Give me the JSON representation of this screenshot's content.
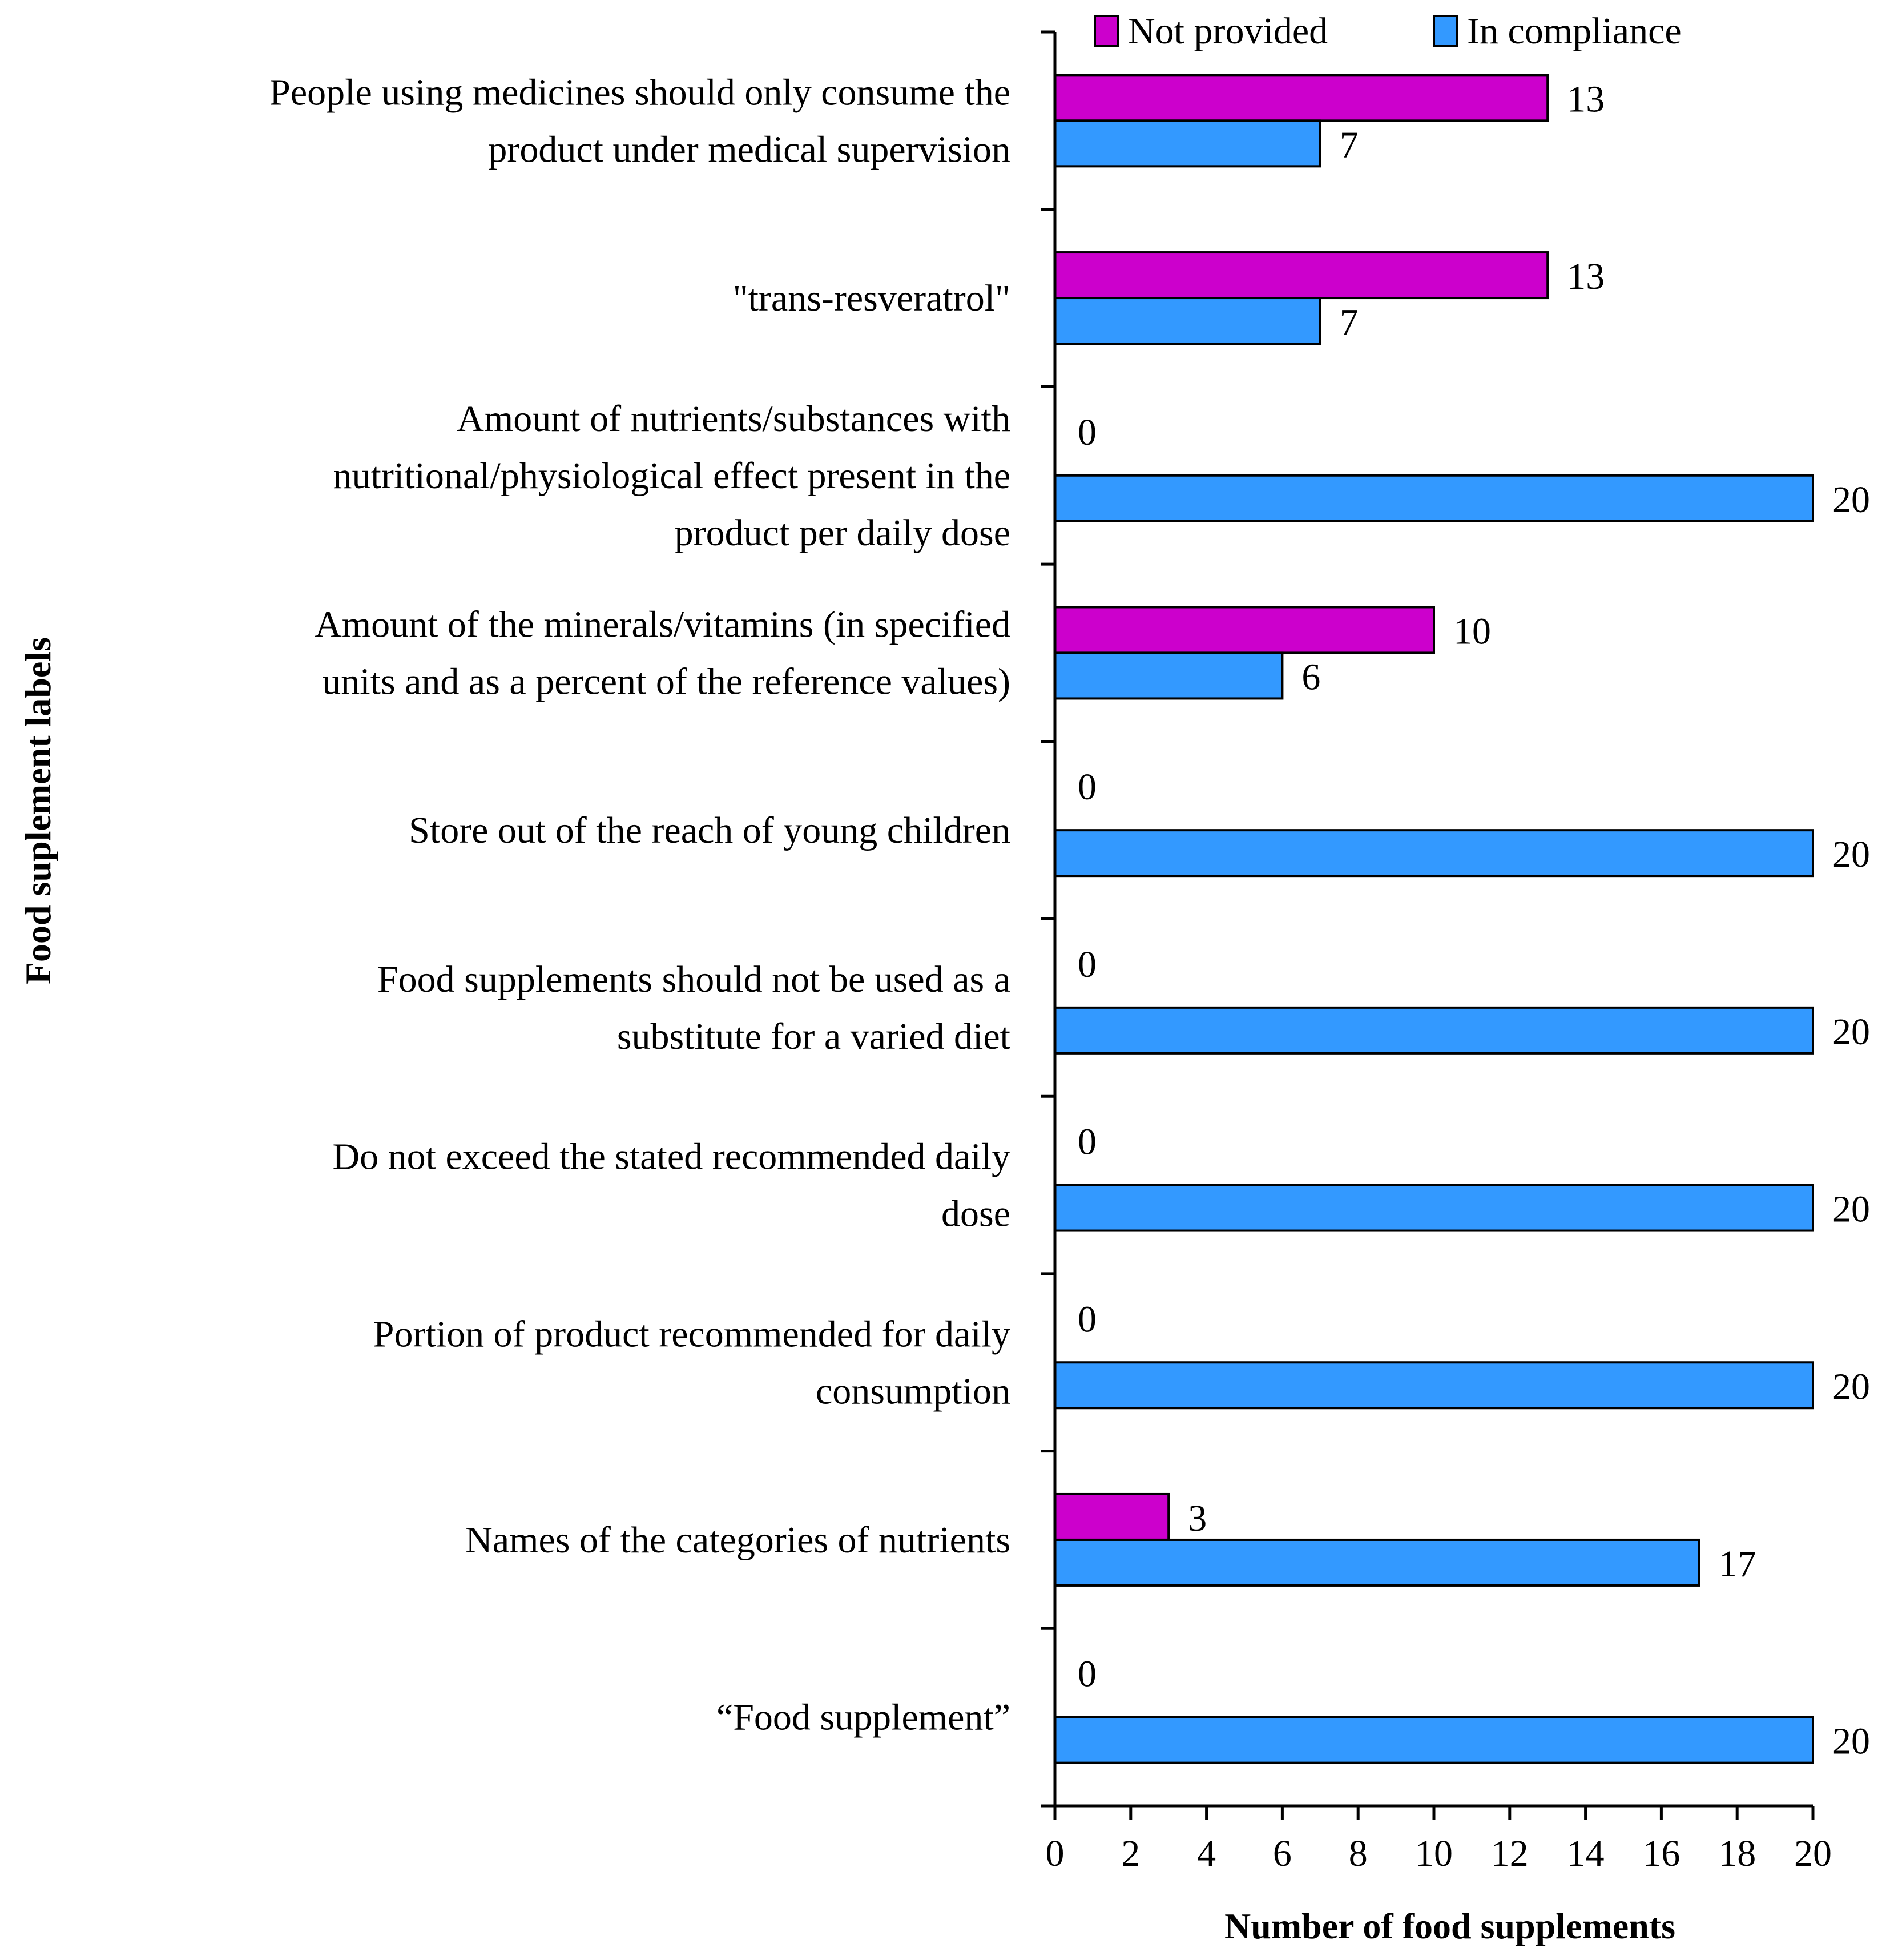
{
  "chart_data": {
    "type": "bar",
    "orientation": "horizontal",
    "categories": [
      [
        "People using medicines should only consume the",
        "product under medical supervision"
      ],
      [
        "\"trans-resveratrol\""
      ],
      [
        "Amount of nutrients/substances with",
        "nutritional/physiological effect present in the",
        "product per daily dose"
      ],
      [
        "Amount of the minerals/vitamins (in specified",
        "units and as a percent of the reference values)"
      ],
      [
        "Store out of the reach of young children"
      ],
      [
        "Food supplements should not be used as a",
        "substitute for a varied diet"
      ],
      [
        "Do not exceed the stated recommended daily",
        "dose"
      ],
      [
        "Portion of product recommended for daily",
        "consumption"
      ],
      [
        "Names of the categories of nutrients"
      ],
      [
        "“Food supplement”"
      ]
    ],
    "series": [
      {
        "name": "Not provided",
        "color": "#CC00CC",
        "values": [
          13,
          13,
          0,
          10,
          0,
          0,
          0,
          0,
          3,
          0
        ]
      },
      {
        "name": "In compliance",
        "color": "#3399FF",
        "values": [
          7,
          7,
          20,
          6,
          20,
          20,
          20,
          20,
          17,
          20
        ]
      }
    ],
    "xlabel": "Number of food supplements",
    "ylabel": "Food suplement labels",
    "xlim": [
      0,
      20
    ],
    "xticks": [
      0,
      2,
      4,
      6,
      8,
      10,
      12,
      14,
      16,
      18,
      20
    ],
    "legend_position": "top",
    "grid": false,
    "data_labels": true
  }
}
